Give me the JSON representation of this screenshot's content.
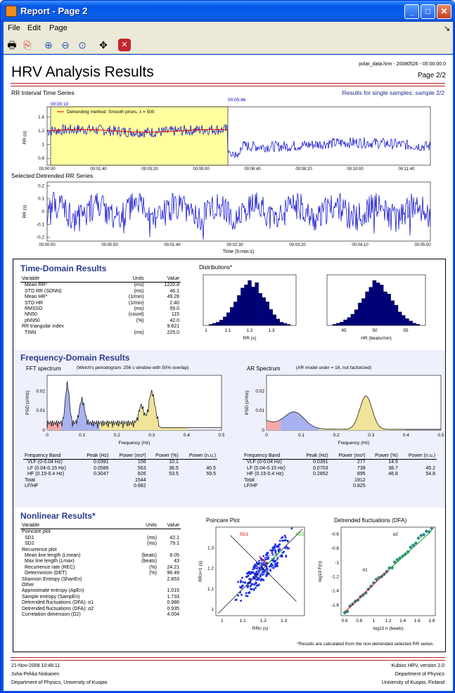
{
  "window": {
    "title": "Report - Page 2",
    "minimize": "_",
    "maximize": "□",
    "close": "✕"
  },
  "menu": [
    "File",
    "Edit",
    "Page"
  ],
  "menu_arrow": "↘",
  "toolbar": [
    {
      "icon": "print-icon",
      "glyph": "🖶"
    },
    {
      "icon": "pdf-icon",
      "glyph": "⎘"
    },
    {
      "icon": "zoom-in-icon",
      "glyph": "⊕"
    },
    {
      "icon": "zoom-out-icon",
      "glyph": "⊖"
    },
    {
      "icon": "zoom-reset-icon",
      "glyph": "⊙"
    },
    {
      "icon": "pan-icon",
      "glyph": "✥"
    },
    {
      "icon": "stop-icon",
      "glyph": "✕"
    }
  ],
  "report": {
    "title": "HRV Analysis Results",
    "file": "polar_data.hrm - 20080526 - 00:00:00.0",
    "page": "Page 2/2",
    "rr_title": "RR Interval Time Series",
    "samples_note": "Results for single samples: sample 2/2",
    "sel_start": "00:00:10",
    "sel_end": "00:05:46",
    "detrend_legend": "Detrending method: Smooth priors, λ = 500",
    "rr_ylabel": "RR (s)",
    "rr_yticks": [
      "1.4",
      "1.2",
      "1",
      "0.8"
    ],
    "rr_xticks": [
      "00:00:00",
      "00:01:40",
      "00:03:20",
      "00:05:00",
      "00:06:40",
      "00:08:20",
      "00:10:00",
      "00:11:40"
    ],
    "det_title": "Selected Detrended RR Series",
    "det_ylabel": "RR (s)",
    "det_yticks": [
      "0.2",
      "0.1",
      "0",
      "-0.1",
      "-0.2"
    ],
    "det_xticks": [
      "00:00:00",
      "00:00:50",
      "00:01:40",
      "00:02:30",
      "00:03:20",
      "00:04:10",
      "00:05:00"
    ],
    "det_xlabel": "Time (h:min:s)",
    "footnote": "*Results are calculated from the non-detrended selected RR series.",
    "date": "21-Nov-2008 10:48:11",
    "author": "Juha-Pekka Niskanen",
    "dept_left": "Department of Physics, University of Kuopio",
    "version": "Kubios HRV, version 2.0",
    "dept_right": "Department of Physics",
    "univ_right": "University of Kuopio, Finland"
  },
  "time_domain": {
    "title": "Time-Domain Results",
    "headers": [
      "Variable",
      "Units",
      "Value"
    ],
    "rows": [
      [
        "Mean RR*",
        "(ms)",
        "1220.8"
      ],
      [
        "STD RR (SDNN)",
        "(ms)",
        "46.1"
      ],
      [
        "Mean HR*",
        "(1/min)",
        "49.28"
      ],
      [
        "STD HR",
        "(1/min)",
        "2.40"
      ],
      [
        "RMSSD",
        "(ms)",
        "59.0"
      ],
      [
        "NN50",
        "(count)",
        "115"
      ],
      [
        "pNN50",
        "(%)",
        "42.0"
      ],
      [
        "RR triangular index",
        "",
        "9.821"
      ],
      [
        "TINN",
        "(ms)",
        "225.0"
      ]
    ],
    "dist_title": "Distributions*",
    "rr_xlabel": "RR (s)",
    "rr_xticks": [
      "1",
      "1.1",
      "1.2",
      "1.3"
    ],
    "rr_hist": [
      1,
      2,
      3,
      5,
      8,
      12,
      17,
      22,
      28,
      35,
      38,
      42,
      36,
      40,
      30,
      26,
      22,
      15,
      10,
      6,
      3,
      2,
      1
    ],
    "hr_xlabel": "HR (beats/min)",
    "hr_xticks": [
      "45",
      "50",
      "55"
    ],
    "hr_hist": [
      1,
      2,
      3,
      5,
      7,
      10,
      14,
      20,
      24,
      30,
      34,
      40,
      38,
      36,
      30,
      28,
      22,
      18,
      12,
      9,
      6,
      4,
      2,
      1
    ]
  },
  "freq_domain": {
    "title": "Frequency-Domain Results",
    "fft_title": "FFT spectrum",
    "fft_note": "(Welch's periodogram: 256 s window with 50% overlap)",
    "ar_title": "AR Spectrum",
    "ar_note": "(AR model order = 16, not factorized)",
    "ylabel": "PSD (s²/Hz)",
    "yticks": [
      "0.02",
      "0.01",
      "0"
    ],
    "xticks": [
      "0",
      "0.1",
      "0.2",
      "0.3",
      "0.4",
      "0.5"
    ],
    "xlabel": "Frequency (Hz)",
    "band_colors": {
      "vlf": "#f4a8a8",
      "lf": "#a9b2f0",
      "hf": "#f0e49a"
    },
    "headers": [
      "Frequency Band",
      "Peak (Hz)",
      "Power (ms²)",
      "Power (%)",
      "Power (n.u.)"
    ],
    "fft_rows": [
      [
        "VLF (0-0.04 Hz)",
        "0.0391",
        "156",
        "10.1",
        ""
      ],
      [
        "LF (0.04-0.15 Hz)",
        "0.0586",
        "563",
        "36.5",
        "40.5"
      ],
      [
        "HF (0.15-0.4 Hz)",
        "0.3047",
        "826",
        "53.5",
        "59.5"
      ],
      [
        "Total",
        "",
        "1544",
        "",
        ""
      ],
      [
        "LF/HF",
        "",
        "0.682",
        "",
        ""
      ]
    ],
    "ar_rows": [
      [
        "VLF (0-0.04 Hz)",
        "0.0391",
        "277",
        "14.5",
        ""
      ],
      [
        "LF (0.04-0.15 Hz)",
        "0.0703",
        "739",
        "38.7",
        "45.2"
      ],
      [
        "HF (0.15-0.4 Hz)",
        "0.2852",
        "895",
        "46.8",
        "54.8"
      ],
      [
        "Total",
        "",
        "1912",
        "",
        ""
      ],
      [
        "LF/HF",
        "",
        "0.825",
        "",
        ""
      ]
    ]
  },
  "nonlinear": {
    "title": "Nonlinear Results*",
    "headers": [
      "Variable",
      "Units",
      "Value"
    ],
    "rows": [
      [
        "Poincare plot",
        "",
        ""
      ],
      [
        "SD1",
        "(ms)",
        "42.1"
      ],
      [
        "SD2",
        "(ms)",
        "79.1"
      ],
      [
        "Recurrence plot",
        "",
        ""
      ],
      [
        "Mean line length (Lmean)",
        "(beats)",
        "8.05"
      ],
      [
        "Max line length (Lmax)",
        "(beats)",
        "43"
      ],
      [
        "Recurrence rate (REC)",
        "(%)",
        "24.21"
      ],
      [
        "Determinism (DET)",
        "(%)",
        "96.49"
      ],
      [
        "Shannon Entropy (ShanEn)",
        "",
        "2.853"
      ],
      [
        "Other",
        "",
        ""
      ],
      [
        "Approximate entropy (ApEn)",
        "",
        "1.015"
      ],
      [
        "Sample entropy (SampEn)",
        "",
        "1.733"
      ],
      [
        "Detrended fluctuations (DFA): α1",
        "",
        "0.986"
      ],
      [
        "Detrended fluctuations (DFA): α2",
        "",
        "0.935"
      ],
      [
        "Correlation dimension (D2)",
        "",
        "4.004"
      ]
    ],
    "poincare_title": "Poincare Plot",
    "sd1": "SD1",
    "sd2": "SD2",
    "pc_ylabel": "RRn+1 (s)",
    "pc_xlabel": "RRn (s)",
    "pc_ticks": [
      "1",
      "1.1",
      "1.2",
      "1.3"
    ],
    "dfa_title": "Detrended fluctuations (DFA)",
    "alpha1": "α1",
    "alpha2": "α2",
    "dfa_ylabel": "log10 F(n)",
    "dfa_xlabel": "log10 n (beats)",
    "dfa_yticks": [
      "-0.6",
      "-0.8",
      "-1",
      "-1.2",
      "-1.4",
      "-1.6"
    ],
    "dfa_xticks": [
      "0.6",
      "0.8",
      "1",
      "1.2",
      "1.4",
      "1.6",
      "1.8"
    ]
  }
}
